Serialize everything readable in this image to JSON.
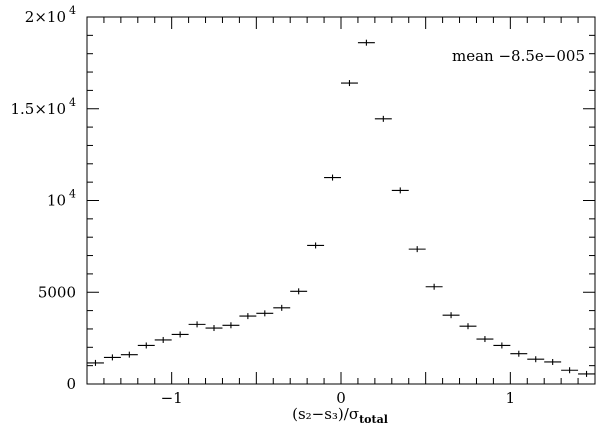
{
  "chart_data": {
    "type": "scatter",
    "xlabel": "(s₂−s₃)/σ",
    "xlabel_sub": "total",
    "ylabel": "",
    "xlim": [
      -1.5,
      1.5
    ],
    "ylim": [
      0,
      20000
    ],
    "x_ticks": [
      {
        "value": -1,
        "label": "−1"
      },
      {
        "value": 0,
        "label": "0"
      },
      {
        "value": 1,
        "label": "1"
      }
    ],
    "y_ticks": [
      {
        "value": 0,
        "label": "0"
      },
      {
        "value": 5000,
        "label": "5000"
      },
      {
        "value": 10000,
        "base": "10",
        "exp": "4"
      },
      {
        "value": 15000,
        "base": "1.5×10",
        "exp": "4"
      },
      {
        "value": 20000,
        "base": "2×10",
        "exp": "4"
      }
    ],
    "annotation": "mean  −8.5e−005",
    "bin_width": 0.1,
    "points": [
      {
        "x": -1.45,
        "y": 1150
      },
      {
        "x": -1.35,
        "y": 1450
      },
      {
        "x": -1.25,
        "y": 1600
      },
      {
        "x": -1.15,
        "y": 2100
      },
      {
        "x": -1.05,
        "y": 2400
      },
      {
        "x": -0.95,
        "y": 2700
      },
      {
        "x": -0.85,
        "y": 3250
      },
      {
        "x": -0.75,
        "y": 3050
      },
      {
        "x": -0.65,
        "y": 3200
      },
      {
        "x": -0.55,
        "y": 3700
      },
      {
        "x": -0.45,
        "y": 3850
      },
      {
        "x": -0.35,
        "y": 4150
      },
      {
        "x": -0.25,
        "y": 5050
      },
      {
        "x": -0.15,
        "y": 7550
      },
      {
        "x": -0.05,
        "y": 11250
      },
      {
        "x": 0.05,
        "y": 16400
      },
      {
        "x": 0.15,
        "y": 18600
      },
      {
        "x": 0.25,
        "y": 14450
      },
      {
        "x": 0.35,
        "y": 10550
      },
      {
        "x": 0.45,
        "y": 7350
      },
      {
        "x": 0.55,
        "y": 5300
      },
      {
        "x": 0.65,
        "y": 3750
      },
      {
        "x": 0.75,
        "y": 3150
      },
      {
        "x": 0.85,
        "y": 2450
      },
      {
        "x": 0.95,
        "y": 2100
      },
      {
        "x": 1.05,
        "y": 1650
      },
      {
        "x": 1.15,
        "y": 1350
      },
      {
        "x": 1.25,
        "y": 1200
      },
      {
        "x": 1.35,
        "y": 750
      },
      {
        "x": 1.45,
        "y": 550
      }
    ]
  }
}
